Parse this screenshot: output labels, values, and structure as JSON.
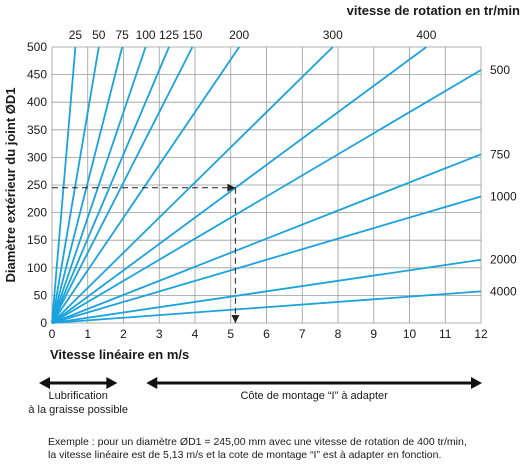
{
  "chart_data": {
    "type": "line",
    "ylabel": "Diamètre extérieur du joint ØD1",
    "xlabel": "Vitesse linéaire en m/s",
    "x2label": "vitesse de rotation en tr/min",
    "xlim": [
      0,
      12
    ],
    "ylim": [
      0,
      500
    ],
    "x_ticks": [
      0,
      1,
      2,
      3,
      4,
      5,
      6,
      7,
      8,
      9,
      10,
      11,
      12
    ],
    "y_ticks": [
      0,
      50,
      100,
      150,
      200,
      250,
      300,
      350,
      400,
      450,
      500
    ],
    "grid": true,
    "series": [
      {
        "rpm": 25,
        "label": "25",
        "label_pos": "top"
      },
      {
        "rpm": 50,
        "label": "50",
        "label_pos": "top"
      },
      {
        "rpm": 75,
        "label": "75",
        "label_pos": "top"
      },
      {
        "rpm": 100,
        "label": "100",
        "label_pos": "top"
      },
      {
        "rpm": 125,
        "label": "125",
        "label_pos": "top"
      },
      {
        "rpm": 150,
        "label": "150",
        "label_pos": "top"
      },
      {
        "rpm": 200,
        "label": "200",
        "label_pos": "top"
      },
      {
        "rpm": 300,
        "label": "300",
        "label_pos": "top"
      },
      {
        "rpm": 400,
        "label": "400",
        "label_pos": "top"
      },
      {
        "rpm": 500,
        "label": "500",
        "label_pos": "right"
      },
      {
        "rpm": 750,
        "label": "750",
        "label_pos": "right"
      },
      {
        "rpm": 1000,
        "label": "1000",
        "label_pos": "right"
      },
      {
        "rpm": 2000,
        "label": "2000",
        "label_pos": "right"
      },
      {
        "rpm": 4000,
        "label": "4000",
        "label_pos": "right"
      }
    ],
    "example": {
      "diameter": 245,
      "rpm": 400,
      "speed": 5.13
    },
    "ranges": [
      {
        "from": 0,
        "to": 1.8,
        "label_lines": [
          "Lubrification",
          "à la graisse possible"
        ]
      },
      {
        "from": 3,
        "to": 12,
        "label_lines": [
          "Côte de montage “I” à adapter"
        ]
      }
    ],
    "colors": {
      "lines": "#1aa3dc",
      "grid": "#9a9a9a",
      "text": "#1a1a1a"
    }
  },
  "note": {
    "line1": "Exemple : pour un diamètre ØD1 = 245,00 mm avec une vitesse de rotation de 400 tr/min,",
    "line2": "la vitesse linéaire est de 5,13 m/s et la cote de montage “I” est à adapter en fonction."
  }
}
